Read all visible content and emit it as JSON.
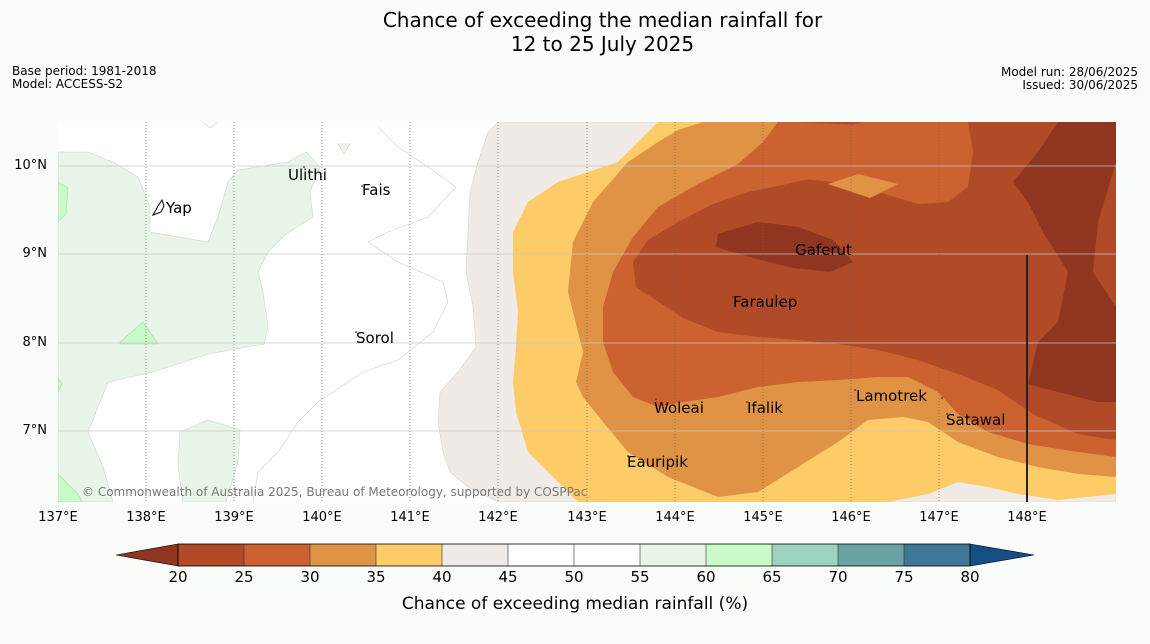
{
  "title_line1": "Chance of exceeding the median rainfall for",
  "title_line2": "12 to 25 July 2025",
  "meta_left": {
    "base_period": "Base period: 1981-2018",
    "model": "Model: ACCESS-S2"
  },
  "meta_right": {
    "model_run": "Model run: 28/06/2025",
    "issued": "Issued: 30/06/2025"
  },
  "map": {
    "lat_labels": [
      "10°N",
      "9°N",
      "8°N",
      "7°N"
    ],
    "lon_labels": [
      "137°E",
      "138°E",
      "139°E",
      "140°E",
      "141°E",
      "142°E",
      "143°E",
      "144°E",
      "145°E",
      "146°E",
      "147°E",
      "148°E"
    ],
    "places": [
      "Yap",
      "Ulithi",
      "Fais",
      "Gaferut",
      "Faraulep",
      "Sorol",
      "Woleai",
      "Ifalik",
      "Lamotrek",
      "Satawal",
      "Eauripik"
    ],
    "copyright": "© Commonwealth of Australia 2025, Bureau of Meteorology, supported by COSPPac"
  },
  "colorbar": {
    "label": "Chance of exceeding median rainfall (%)",
    "ticks": [
      "20",
      "25",
      "30",
      "35",
      "40",
      "45",
      "50",
      "55",
      "60",
      "65",
      "70",
      "75",
      "80"
    ],
    "colors": {
      "lt20": "#8f3520",
      "20-25": "#b04a27",
      "25-30": "#cb6230",
      "30-35": "#e09345",
      "35-40": "#fdcb68",
      "40-45": "#f0ebe6",
      "45-50": "#ffffff",
      "50-55": "#ffffff",
      "55-60": "#eaf5ea",
      "60-65": "#c8fbc8",
      "65-70": "#9dd2bd",
      "70-75": "#6ba3a5",
      "75-80": "#3e7896",
      "gt80": "#134e84"
    }
  }
}
